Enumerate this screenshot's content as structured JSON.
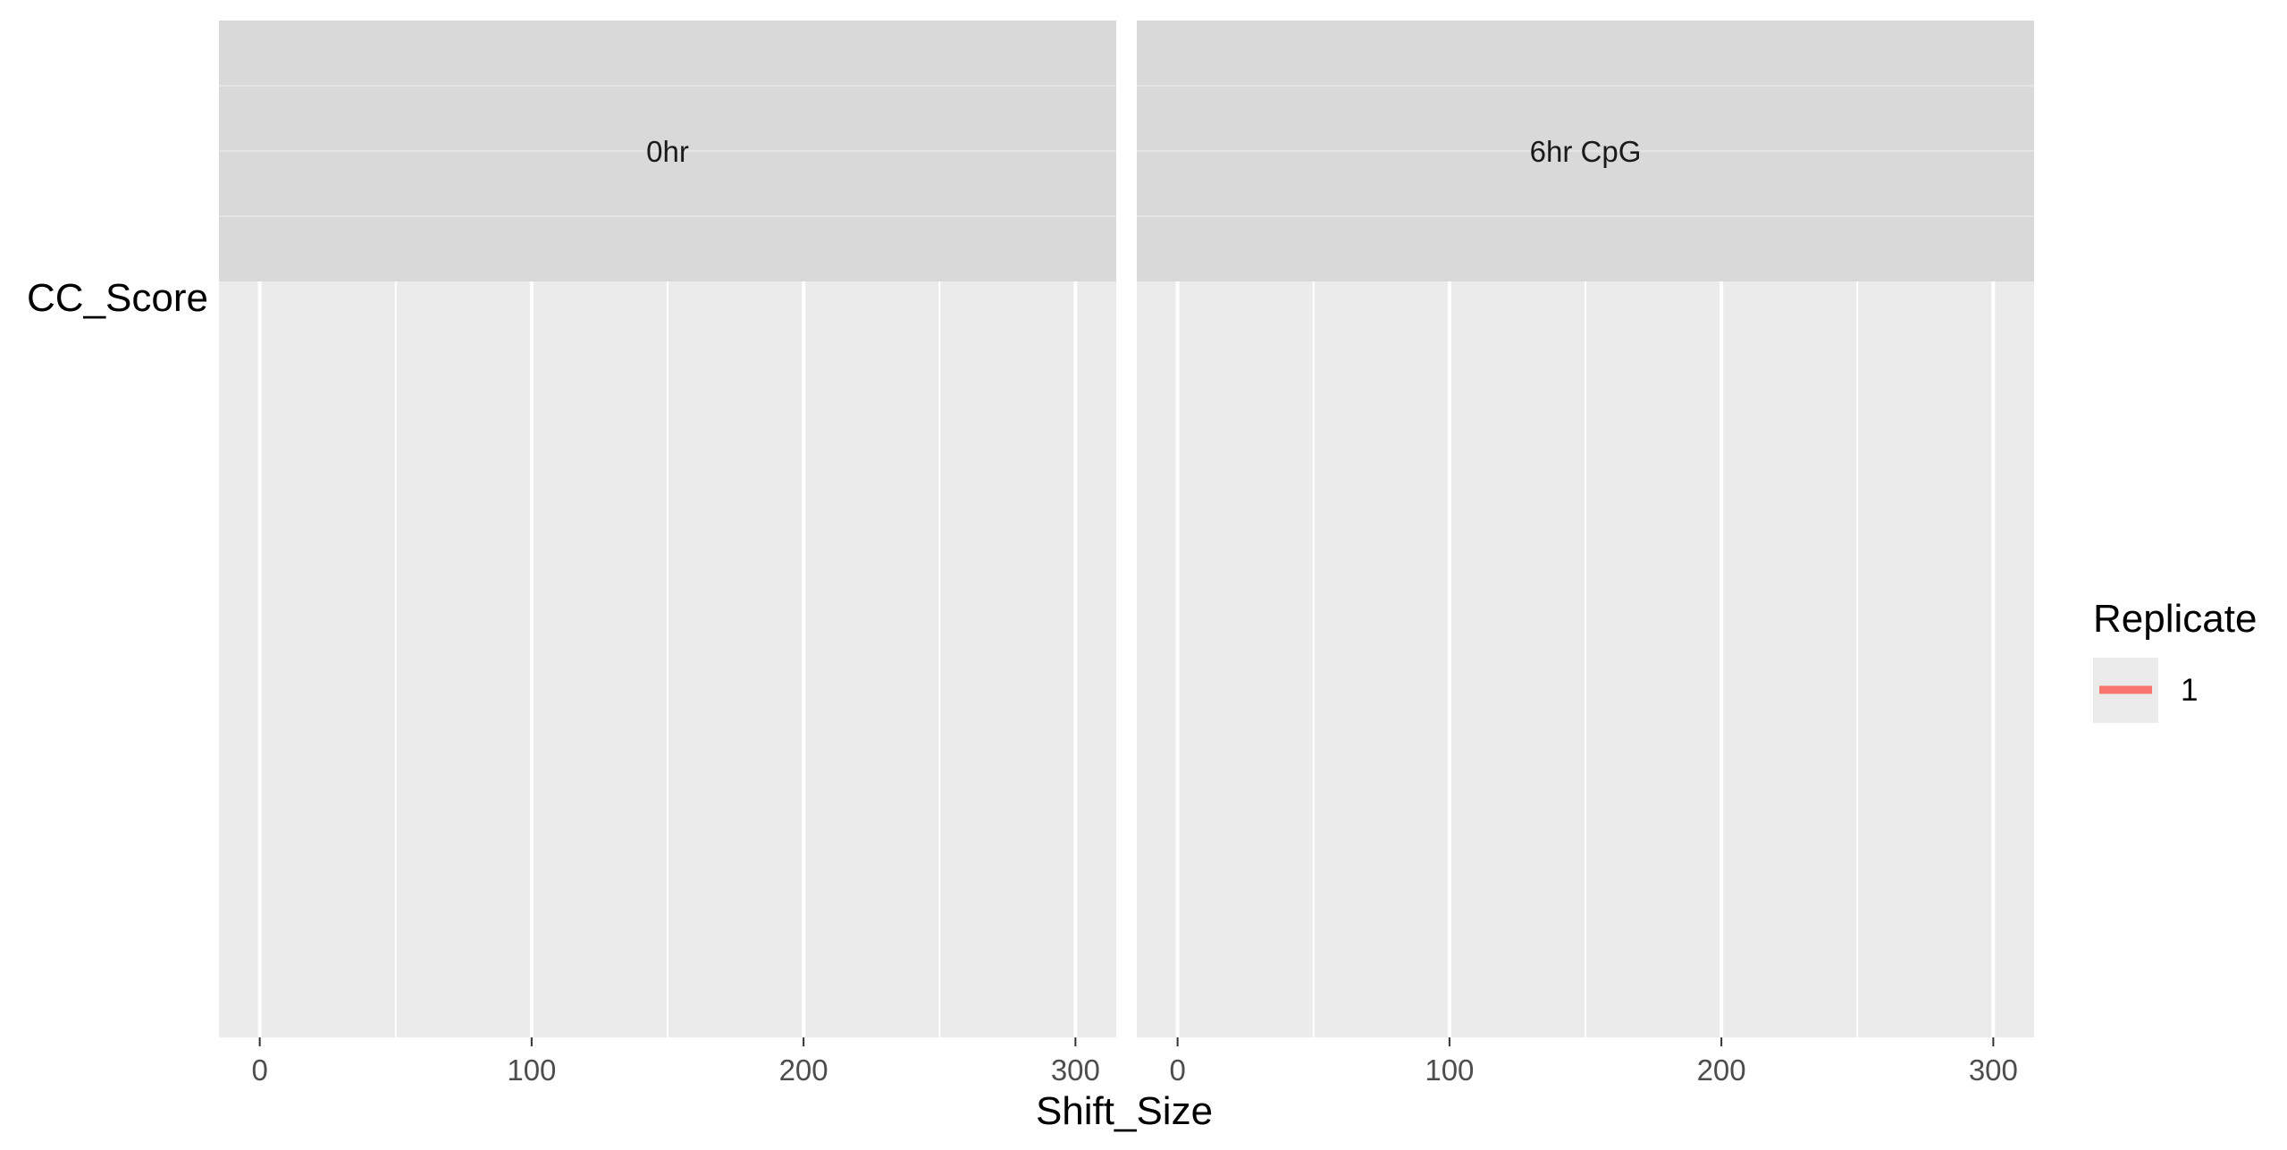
{
  "chart_data": {
    "type": "line",
    "title": "",
    "xlabel": "Shift_Size",
    "ylabel": "CC_Score",
    "xlim": [
      -15,
      315
    ],
    "x_ticks": [
      0,
      100,
      200,
      300
    ],
    "x_minor_ticks": [
      50,
      150,
      250
    ],
    "grid": true,
    "panels": [
      {
        "label": "0hr",
        "series": [
          {
            "name": "1",
            "x": [],
            "y": []
          }
        ]
      },
      {
        "label": "6hr CpG",
        "series": [
          {
            "name": "1",
            "x": [],
            "y": []
          }
        ]
      }
    ],
    "legend": {
      "title": "Replicate",
      "position": "right",
      "entries": [
        {
          "label": "1",
          "color": "#F8766D"
        }
      ]
    }
  },
  "colors": {
    "panel_background": "#EBEBEB",
    "strip_background": "#D9D9D9",
    "grid_major": "#FFFFFF",
    "series_1": "#F8766D"
  }
}
